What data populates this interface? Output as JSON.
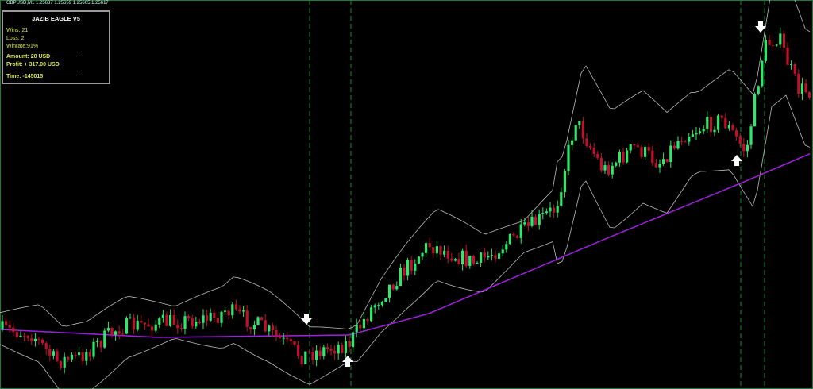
{
  "header": {
    "symbol_line": "GBPUSD,M1  1.25637 1.25659 1.25605 1.25617"
  },
  "panel": {
    "title": "JAZIB EAGLE V5",
    "wins": "Wins: 21",
    "loss": "Loss: 2",
    "winrate": "Winrate:91%",
    "amount": "Amount: 20 USD",
    "profit": "Profit: + 317.00 USD",
    "time": "Time:  -145015"
  }
}
